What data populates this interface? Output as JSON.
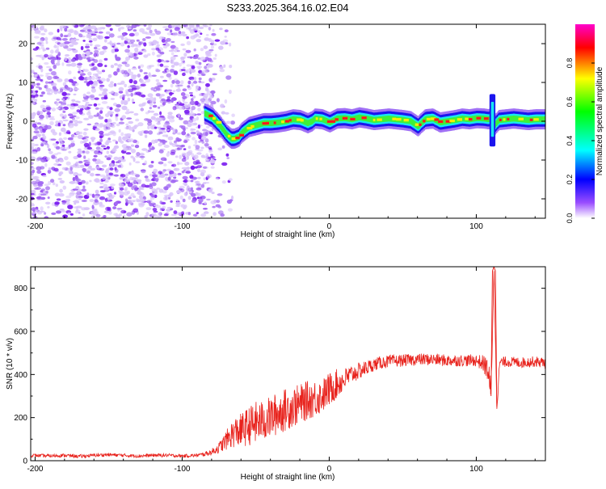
{
  "figure_title": "S233.2025.364.16.02.E04",
  "chart_data": [
    {
      "type": "heatmap",
      "title": "S233.2025.364.16.02.E04",
      "xlabel": "Height of straight line (km)",
      "ylabel": "Frequency (Hz)",
      "xlim": [
        -203,
        147
      ],
      "ylim": [
        -25,
        25
      ],
      "x_ticks": [
        -200,
        -100,
        0,
        100
      ],
      "y_ticks": [
        -20,
        -10,
        0,
        10,
        20
      ],
      "noise_region_km": [
        -203,
        -77
      ],
      "signal_trace": {
        "x": [
          -85,
          -80,
          -75,
          -72,
          -70,
          -67,
          -65,
          -62,
          -60,
          -55,
          -50,
          -45,
          -40,
          -35,
          -30,
          -25,
          -20,
          -15,
          -12,
          -10,
          -5,
          0,
          5,
          10,
          15,
          20,
          25,
          30,
          35,
          40,
          45,
          50,
          55,
          60,
          62,
          65,
          70,
          75,
          80,
          85,
          90,
          95,
          100,
          105,
          108,
          110,
          112,
          115,
          120,
          125,
          130,
          135,
          140,
          147
        ],
        "y": [
          2,
          1,
          -1,
          -2.5,
          -3.5,
          -4.5,
          -4.5,
          -4,
          -3,
          -1.5,
          -1,
          -0.5,
          -0.5,
          -0.3,
          0,
          0.5,
          0.3,
          -0.5,
          0,
          0.7,
          0.5,
          -0.3,
          0.7,
          0.8,
          0.5,
          1,
          0.7,
          0.3,
          0.5,
          0.7,
          0.5,
          0.3,
          0,
          -1.3,
          -0.5,
          0.5,
          0.7,
          -0.3,
          0,
          0.3,
          0.7,
          0.5,
          0.8,
          0.7,
          0.5,
          1,
          -1,
          0.3,
          0.5,
          0.7,
          0.5,
          0.3,
          0.5,
          0.5
        ]
      },
      "colorbar": {
        "label": "Normalized spectral amplitude",
        "range": [
          0.0,
          1.0
        ],
        "ticks": [
          "0.0",
          "0.2",
          "0.4",
          "0.6",
          "0.8"
        ],
        "tick_values": [
          0.0,
          0.2,
          0.4,
          0.6,
          0.8
        ],
        "colors": [
          "#ffffff",
          "#8000ff",
          "#0000ff",
          "#00ffff",
          "#00ff00",
          "#ffff00",
          "#ff0000",
          "#ff00ff"
        ]
      }
    },
    {
      "type": "line",
      "xlabel": "Height of straight line (km)",
      "ylabel": "SNR (10 * v/v)",
      "xlim": [
        -203,
        147
      ],
      "ylim": [
        0,
        900
      ],
      "x_ticks": [
        -200,
        -100,
        0,
        100
      ],
      "y_ticks": [
        0,
        200,
        400,
        600,
        800
      ],
      "series": [
        {
          "name": "SNR",
          "color": "#e8231d",
          "x": [
            -203,
            -190,
            -180,
            -170,
            -160,
            -150,
            -140,
            -130,
            -120,
            -110,
            -100,
            -90,
            -85,
            -80,
            -75,
            -70,
            -65,
            -60,
            -55,
            -50,
            -45,
            -40,
            -35,
            -30,
            -25,
            -20,
            -15,
            -10,
            -5,
            0,
            5,
            10,
            15,
            20,
            25,
            30,
            35,
            40,
            50,
            60,
            70,
            80,
            90,
            100,
            105,
            108,
            110,
            112,
            114,
            116,
            118,
            120,
            130,
            140,
            147
          ],
          "y": [
            25,
            22,
            25,
            20,
            25,
            28,
            25,
            22,
            25,
            25,
            22,
            25,
            30,
            40,
            60,
            95,
            130,
            140,
            160,
            175,
            185,
            200,
            220,
            235,
            250,
            260,
            280,
            290,
            300,
            330,
            355,
            375,
            400,
            415,
            430,
            445,
            455,
            460,
            465,
            470,
            470,
            465,
            465,
            465,
            450,
            420,
            300,
            880,
            250,
            460,
            455,
            460,
            455,
            460,
            455
          ],
          "noise_amplitude": [
            8,
            8,
            8,
            8,
            8,
            8,
            8,
            8,
            8,
            8,
            8,
            8,
            10,
            15,
            25,
            45,
            70,
            80,
            90,
            100,
            95,
            100,
            100,
            100,
            95,
            95,
            90,
            90,
            80,
            80,
            70,
            55,
            45,
            40,
            35,
            30,
            30,
            30,
            28,
            28,
            28,
            28,
            28,
            28,
            40,
            60,
            80,
            0,
            20,
            25,
            25,
            25,
            25,
            25,
            25
          ]
        }
      ]
    }
  ]
}
